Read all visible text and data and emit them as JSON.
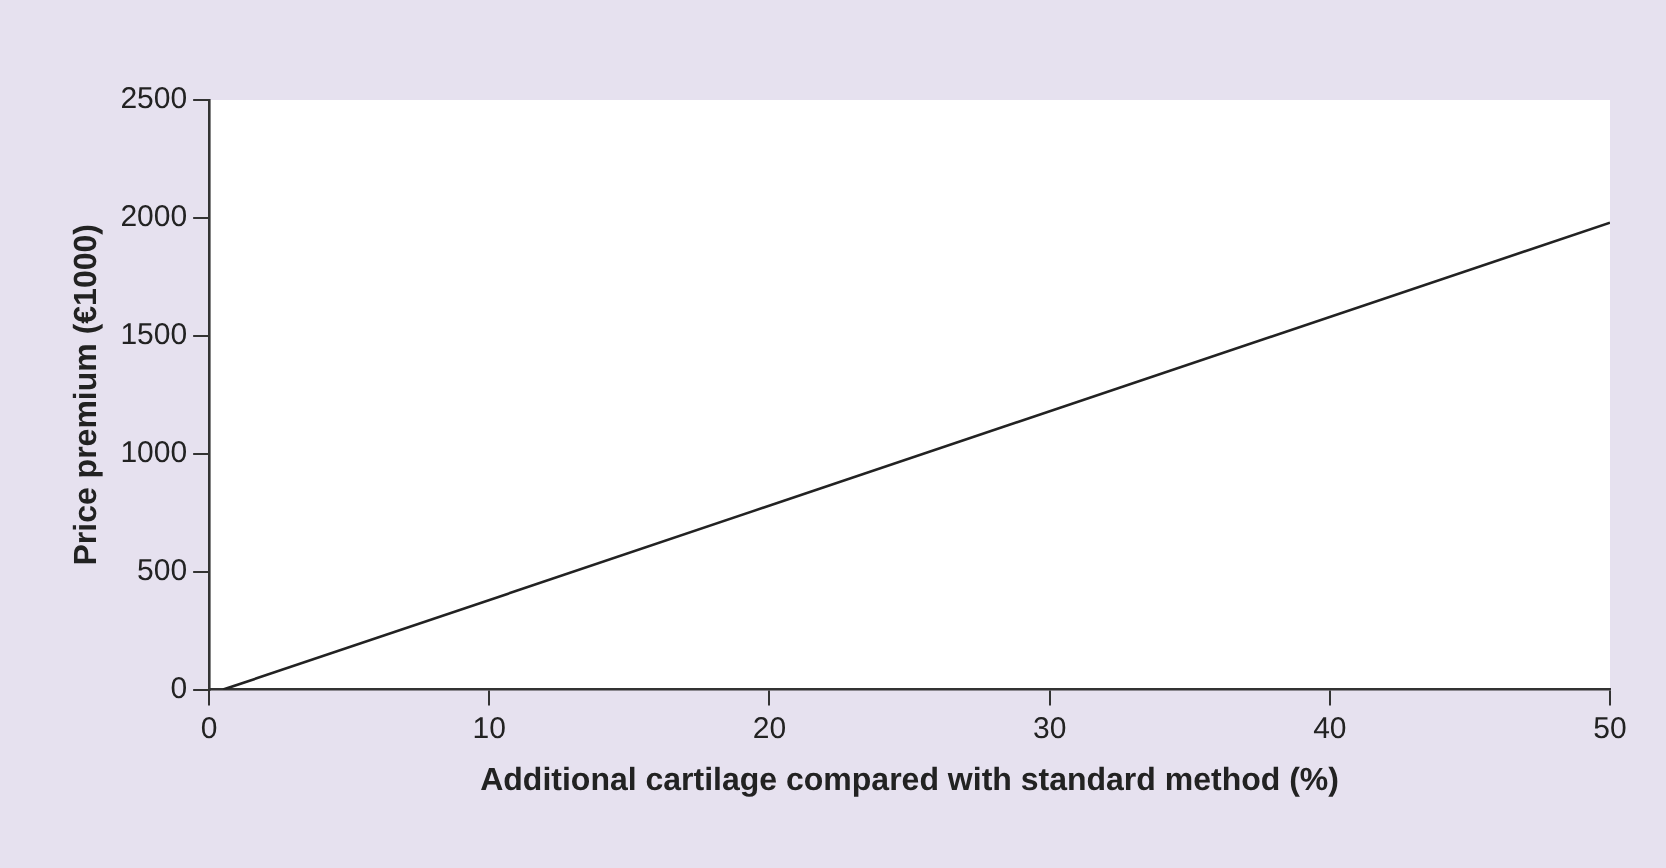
{
  "chart_data": {
    "type": "line",
    "xlabel": "Additional cartilage compared with standard method (%)",
    "ylabel": "Price premium (€1000)",
    "x": [
      0.5,
      50
    ],
    "series": [
      {
        "color": "#222222",
        "values": [
          0,
          1980
        ]
      }
    ],
    "xlim": [
      0,
      50
    ],
    "xticks": [
      0,
      10,
      20,
      30,
      40,
      50
    ],
    "ylim": [
      0,
      2500
    ],
    "yticks": [
      0,
      500,
      1000,
      1500,
      2000,
      2500
    ],
    "grid": false,
    "legend": false,
    "marker": "none",
    "line_style": "solid"
  }
}
